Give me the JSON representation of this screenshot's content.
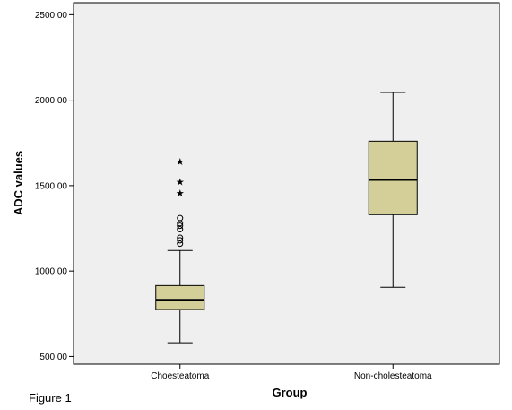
{
  "figure_caption": "Figure 1",
  "chart_data": {
    "type": "boxplot",
    "xlabel": "Group",
    "ylabel": "ADC values",
    "ylim": [
      455,
      2570
    ],
    "yticks": [
      500,
      1000,
      1500,
      2000,
      2500
    ],
    "ytick_labels": [
      "500.00",
      "1000.00",
      "1500.00",
      "2000.00",
      "2500.00"
    ],
    "grid": false,
    "colors": {
      "box_fill": "#d4cf98",
      "plot_bg": "#efefef",
      "stroke": "#000000"
    },
    "categories": [
      "Choesteatoma",
      "Non-cholesteatoma"
    ],
    "boxes": [
      {
        "category": "Choesteatoma",
        "whisker_low": 580,
        "q1": 775,
        "median": 830,
        "q3": 915,
        "whisker_high": 1120,
        "outliers": [
          1160,
          1180,
          1195,
          1245,
          1265,
          1280,
          1310
        ],
        "extremes": [
          1460,
          1525,
          1645
        ]
      },
      {
        "category": "Non-cholesteatoma",
        "whisker_low": 905,
        "q1": 1330,
        "median": 1535,
        "q3": 1760,
        "whisker_high": 2045,
        "outliers": [],
        "extremes": []
      }
    ]
  }
}
